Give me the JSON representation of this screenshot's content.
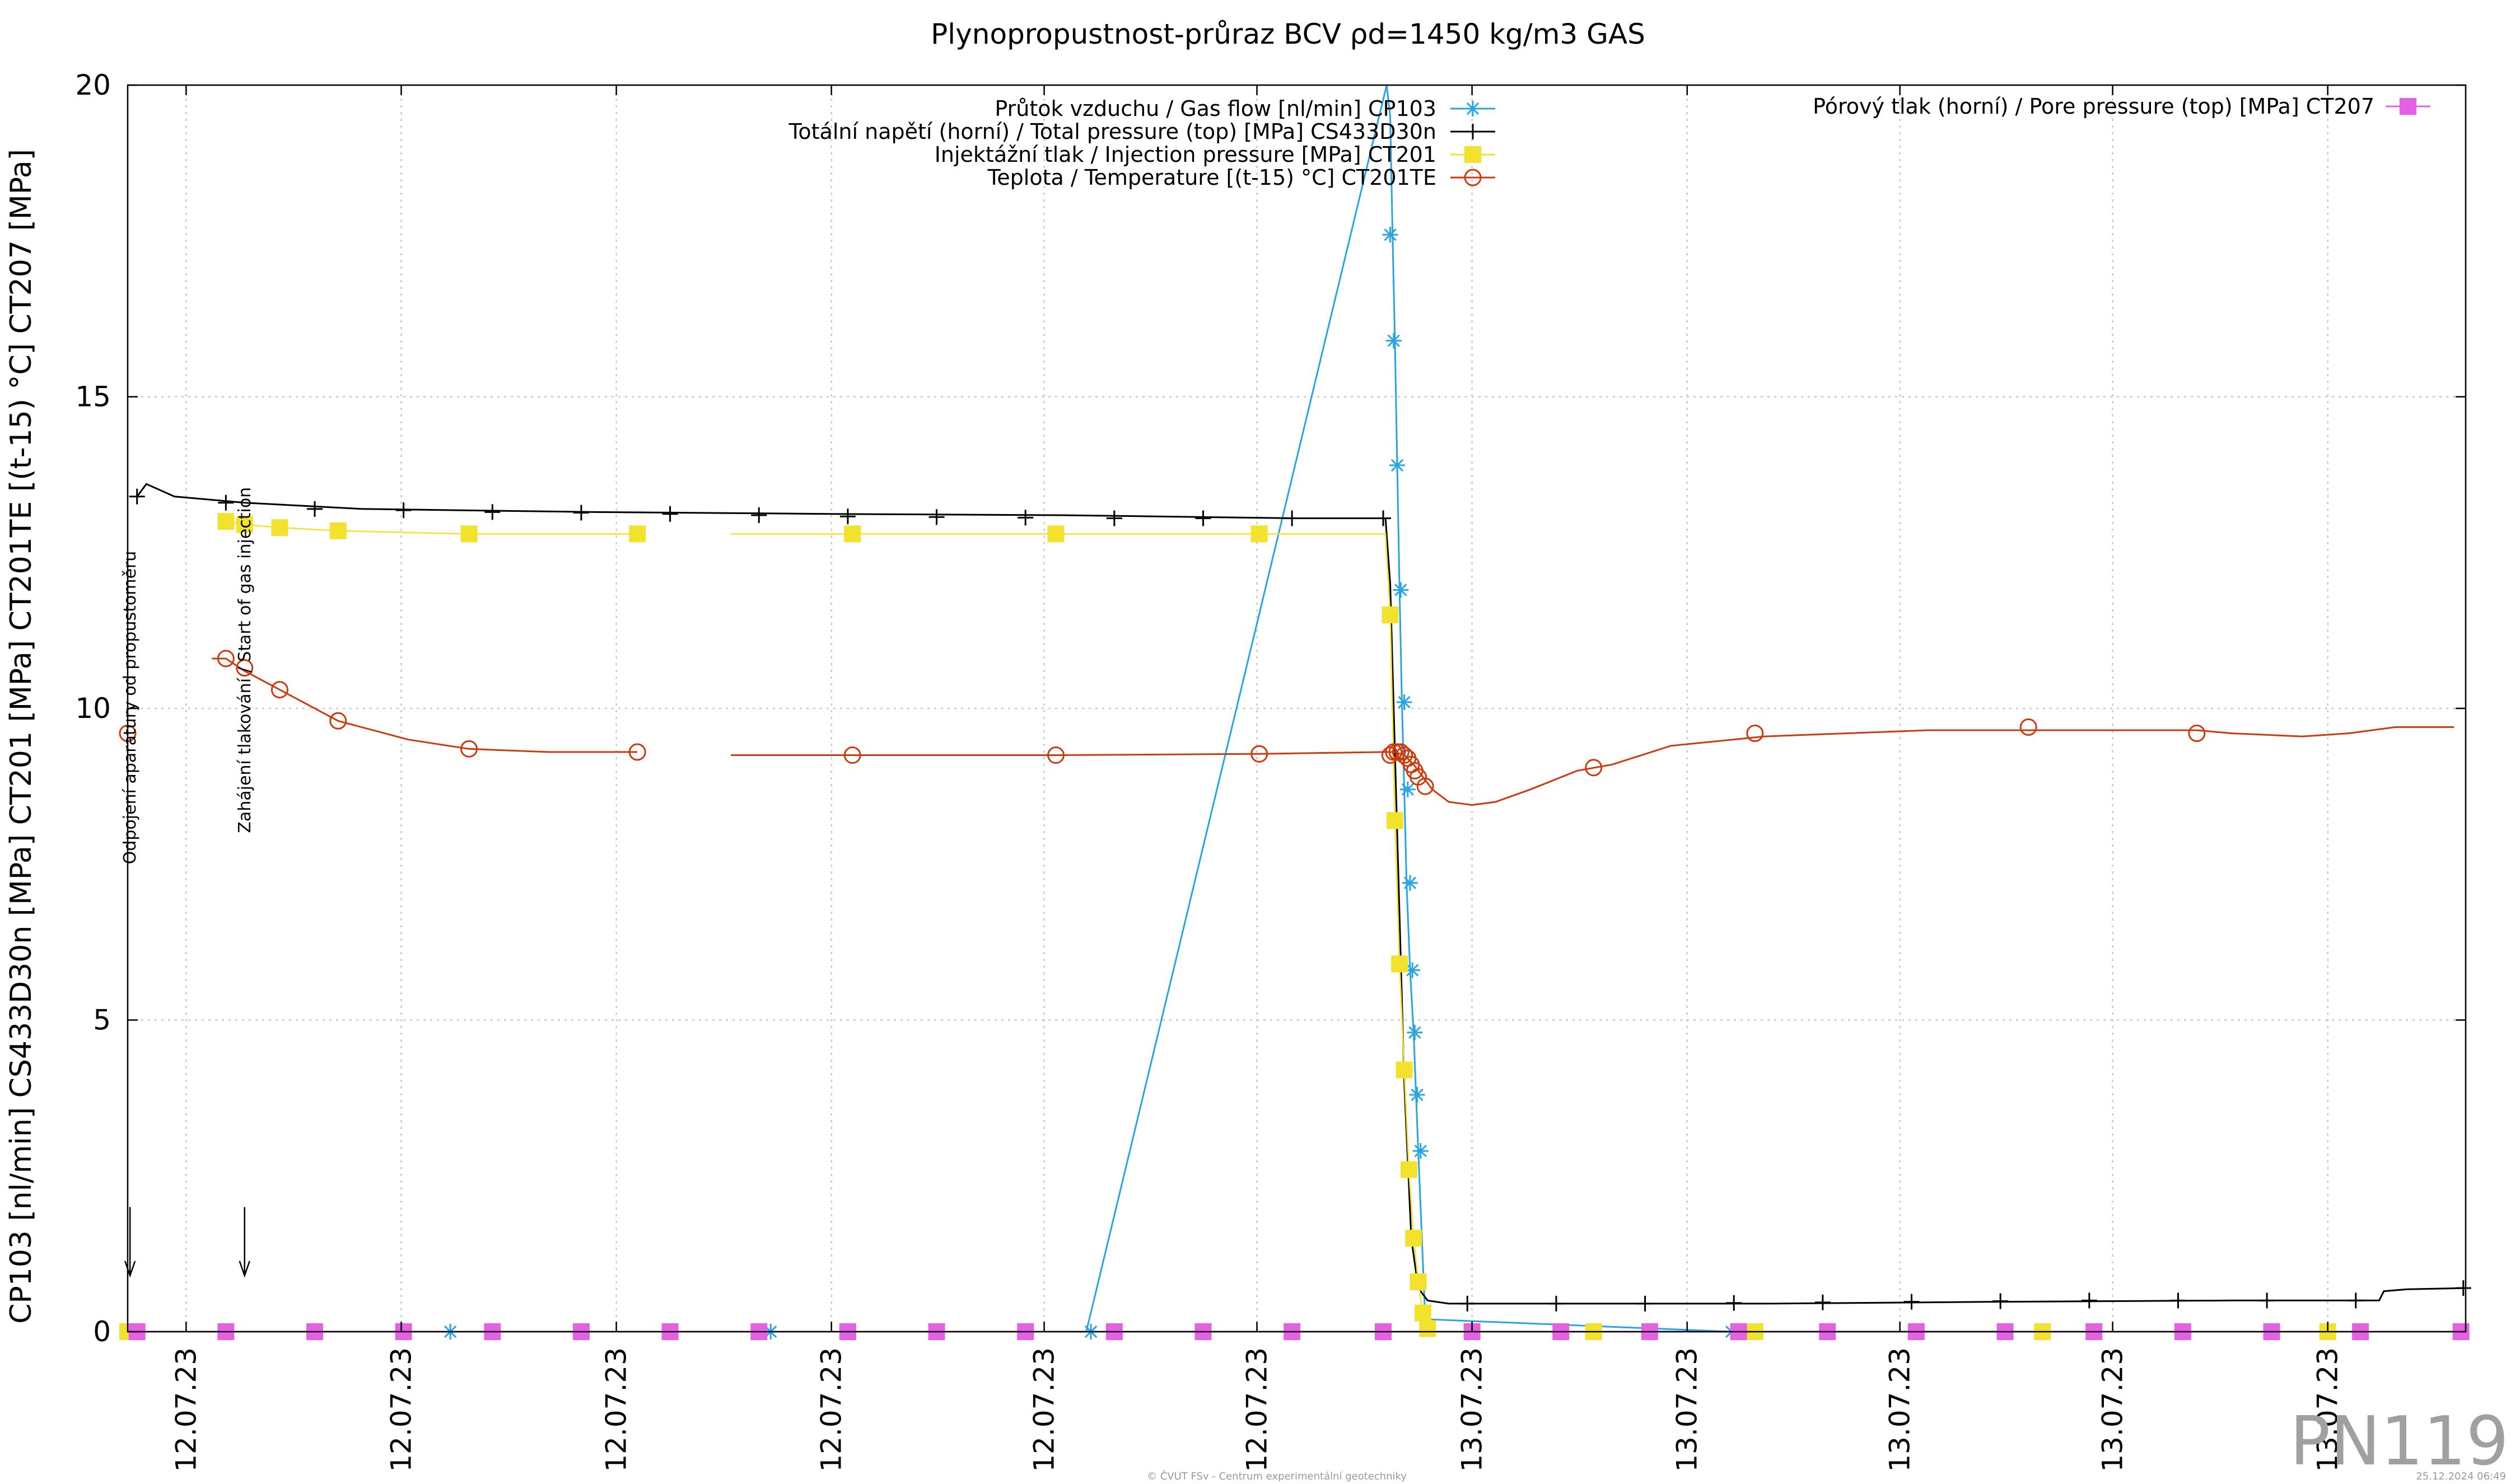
{
  "chart_data": {
    "type": "line",
    "title": "Plynopropustnost-průraz BCV ρd=1450 kg/m3 GAS",
    "ylabel": "CP103 [nl/min] CS433D30n [MPa] CT201 [MPa] CT201TE [(t-15) °C] CT207 [MPa]",
    "xlabel": "",
    "ylim": [
      0,
      20
    ],
    "xlim": [
      0,
      100
    ],
    "y_ticks": [
      0,
      5,
      10,
      15,
      20
    ],
    "x_tick_positions": [
      2.5,
      11.7,
      20.9,
      30.1,
      39.2,
      48.3,
      57.5,
      66.7,
      75.8,
      84.9,
      94.1
    ],
    "x_tick_labels": [
      "12.07.23",
      "12.07.23",
      "12.07.23",
      "12.07.23",
      "12.07.23",
      "12.07.23",
      "13.07.23",
      "13.07.23",
      "13.07.23",
      "13.07.23",
      "13.07.23"
    ],
    "grid": true,
    "legend_position": "top",
    "badge": "PN119",
    "footer_left": "© ČVUT FSv - Centrum experimentální geotechniky",
    "footer_right": "25.12.2024 06:49",
    "annotations": [
      {
        "text": "Odpojení aparatury od propustoměru",
        "x": 0.1,
        "y_text": 7.5,
        "y_arrow_top": 2.0,
        "y_arrow_bottom": 0.9
      },
      {
        "text": "Zahájení tlakování / Start of gas injection",
        "x": 5.0,
        "y_text": 8.0,
        "y_arrow_top": 2.0,
        "y_arrow_bottom": 0.9
      }
    ],
    "series": [
      {
        "name": "Průtok vzduchu / Gas flow [nl/min] CP103",
        "color": "#29a5e6",
        "marker": "star",
        "legend_column": "left",
        "x": [
          0,
          13.5,
          27.2,
          41,
          53.85,
          54.0,
          54.1,
          54.2,
          54.3,
          54.4,
          54.5,
          54.6,
          54.7,
          54.85,
          55.0,
          55.2,
          55.5,
          68.6,
          80.2,
          94.1,
          100
        ],
        "y": [
          0,
          0,
          0,
          0,
          20,
          19.5,
          17.6,
          15.9,
          13.9,
          11.9,
          10.1,
          8.7,
          7.2,
          5.8,
          4.8,
          2.9,
          0.2,
          0,
          0,
          0,
          0
        ],
        "marker_x": [
          13.8,
          27.5,
          41.2,
          54.0,
          54.15,
          54.3,
          54.45,
          54.6,
          54.75,
          54.85,
          54.95,
          55.05,
          55.15,
          55.3,
          68.6,
          80.2,
          94.1
        ],
        "marker_y": [
          0,
          0,
          0,
          17.6,
          15.9,
          13.9,
          11.9,
          10.1,
          8.7,
          7.2,
          5.8,
          4.8,
          3.8,
          2.9,
          0,
          0,
          0
        ]
      },
      {
        "name": "Totální napětí (horní) / Total pressure (top) [MPa] CS433D30n",
        "color": "#000000",
        "marker": "plus",
        "legend_column": "left",
        "x": [
          0.4,
          0.8,
          2.0,
          5.0,
          10,
          20,
          30,
          40,
          50,
          53.8,
          54.0,
          54.3,
          54.6,
          54.9,
          55.2,
          55.6,
          56.5,
          60,
          70,
          80,
          90,
          96.3,
          96.5,
          97.5,
          100
        ],
        "y": [
          13.4,
          13.6,
          13.4,
          13.3,
          13.2,
          13.15,
          13.12,
          13.1,
          13.05,
          13.05,
          12.0,
          8.0,
          4.0,
          1.5,
          0.7,
          0.5,
          0.45,
          0.45,
          0.45,
          0.48,
          0.5,
          0.5,
          0.65,
          0.68,
          0.7
        ],
        "marker_x": [
          0.4,
          4.2,
          8.0,
          11.8,
          15.6,
          19.4,
          23.2,
          27.0,
          30.8,
          34.6,
          38.4,
          42.2,
          46.0,
          49.8,
          53.7,
          57.3,
          61.1,
          64.9,
          68.7,
          72.5,
          76.3,
          80.1,
          83.9,
          87.7,
          91.5,
          95.3,
          99.9
        ],
        "marker_y": [
          13.4,
          13.3,
          13.2,
          13.18,
          13.15,
          13.14,
          13.12,
          13.1,
          13.08,
          13.07,
          13.06,
          13.05,
          13.05,
          13.05,
          13.05,
          0.45,
          0.45,
          0.45,
          0.46,
          0.47,
          0.48,
          0.49,
          0.5,
          0.5,
          0.5,
          0.5,
          0.7
        ]
      },
      {
        "name": "Injektážní tlak / Injection pressure [MPa] CT201",
        "color": "#f2e22e",
        "marker": "square",
        "legend_column": "left",
        "x": [
          4.2,
          5.0,
          6.5,
          9.0,
          14.6,
          21.8,
          null,
          25.8,
          31.0,
          39.7,
          48.4,
          53.8,
          54.0,
          54.2,
          54.4,
          54.6,
          54.8,
          55.0,
          55.2,
          55.4,
          55.6
        ],
        "y": [
          13.0,
          12.95,
          12.9,
          12.85,
          12.8,
          12.8,
          null,
          12.8,
          12.8,
          12.8,
          12.8,
          12.8,
          11.5,
          8.2,
          5.9,
          4.2,
          2.6,
          1.5,
          0.8,
          0.3,
          0.05
        ],
        "marker_x": [
          4.2,
          5.0,
          6.5,
          9.0,
          14.6,
          21.8,
          31.0,
          39.7,
          48.4,
          54.0,
          54.2,
          54.4,
          54.6,
          54.8,
          55.0,
          55.2,
          55.4,
          55.6,
          0,
          62.7,
          69.6,
          81.9,
          94.1
        ],
        "marker_y": [
          13.0,
          12.95,
          12.9,
          12.85,
          12.8,
          12.8,
          12.8,
          12.8,
          12.8,
          11.5,
          8.2,
          5.9,
          4.2,
          2.6,
          1.5,
          0.8,
          0.3,
          0.05,
          0,
          0,
          0,
          0,
          0
        ]
      },
      {
        "name": "Teplota / Temperature [(t-15) °C] CT201TE",
        "color": "#cc3a0e",
        "marker": "circle",
        "legend_column": "left",
        "x": [
          3.6,
          4.2,
          5.0,
          6.5,
          9.0,
          12,
          14.6,
          18,
          21.8,
          null,
          25.8,
          31.0,
          39.7,
          48.4,
          53.8,
          54.2,
          54.6,
          55.0,
          55.4,
          55.8,
          56.5,
          57.5,
          58.5,
          60,
          62,
          63.5,
          66,
          70,
          77,
          80,
          88.5,
          90,
          93,
          95,
          97,
          99.5
        ],
        "y": [
          10.8,
          10.8,
          10.6,
          10.3,
          9.8,
          9.5,
          9.35,
          9.3,
          9.3,
          null,
          9.25,
          9.25,
          9.25,
          9.27,
          9.3,
          9.3,
          9.25,
          9.1,
          8.9,
          8.7,
          8.5,
          8.45,
          8.5,
          8.7,
          9.0,
          9.1,
          9.4,
          9.55,
          9.65,
          9.65,
          9.65,
          9.6,
          9.55,
          9.6,
          9.7,
          9.7
        ],
        "marker_x": [
          0,
          4.2,
          5.0,
          6.5,
          9.0,
          14.6,
          21.8,
          31.0,
          39.7,
          48.4,
          54.0,
          54.15,
          54.3,
          54.45,
          54.6,
          54.75,
          54.9,
          55.05,
          55.2,
          55.5,
          62.7,
          69.6,
          81.3,
          88.5
        ],
        "marker_y": [
          9.6,
          10.8,
          10.65,
          10.3,
          9.8,
          9.35,
          9.3,
          9.25,
          9.25,
          9.27,
          9.25,
          9.3,
          9.3,
          9.3,
          9.25,
          9.2,
          9.1,
          9.0,
          8.9,
          8.75,
          9.05,
          9.6,
          9.7,
          9.6
        ]
      },
      {
        "name": "Pórový tlak (horní) / Pore pressure (top) [MPa] CT207",
        "color": "#e660e6",
        "marker": "square",
        "legend_column": "right",
        "x": [
          0,
          100
        ],
        "y": [
          0,
          0
        ],
        "marker_x": [
          0.4,
          4.2,
          8.0,
          11.8,
          15.6,
          19.4,
          23.2,
          27.0,
          30.8,
          34.6,
          38.4,
          42.2,
          46.0,
          49.8,
          53.7,
          57.5,
          61.3,
          65.1,
          68.9,
          72.7,
          76.5,
          80.3,
          84.1,
          87.9,
          91.7,
          95.5,
          99.8
        ],
        "marker_y": [
          0,
          0,
          0,
          0,
          0,
          0,
          0,
          0,
          0,
          0,
          0,
          0,
          0,
          0,
          0,
          0,
          0,
          0,
          0,
          0,
          0,
          0,
          0,
          0,
          0,
          0,
          0
        ]
      }
    ]
  }
}
